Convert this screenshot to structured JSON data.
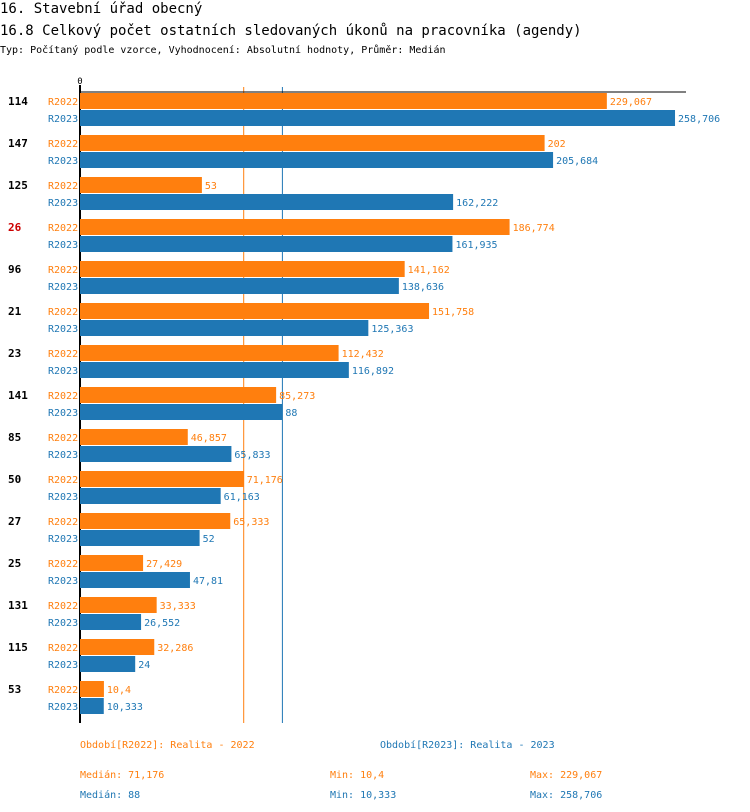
{
  "header": {
    "title": "16. Stavební úřad obecný",
    "subtitle": "16.8 Celkový počet ostatních sledovaných úkonů na pracovníka (agendy)",
    "meta": "Typ: Počítaný podle vzorce, Vyhodnocení: Absolutní hodnoty, Průměr: Medián"
  },
  "colors": {
    "r2022": "#ff7f0e",
    "r2023": "#1f77b4",
    "highlight": "#cc0000"
  },
  "chart_data": {
    "type": "bar",
    "orientation": "horizontal",
    "x_tick_label": "0",
    "xlim": [
      0,
      260
    ],
    "categories": [
      "114",
      "147",
      "125",
      "26",
      "96",
      "21",
      "23",
      "141",
      "85",
      "50",
      "27",
      "25",
      "131",
      "115",
      "53"
    ],
    "highlighted_category": "26",
    "series": [
      {
        "name": "R2022",
        "values": [
          229.067,
          202,
          53,
          186.774,
          141.162,
          151.758,
          112.432,
          85.273,
          46.857,
          71.176,
          65.333,
          27.429,
          33.333,
          32.286,
          10.4
        ],
        "labels": [
          "229,067",
          "202",
          "53",
          "186,774",
          "141,162",
          "151,758",
          "112,432",
          "85,273",
          "46,857",
          "71,176",
          "65,333",
          "27,429",
          "33,333",
          "32,286",
          "10,4"
        ]
      },
      {
        "name": "R2023",
        "values": [
          258.706,
          205.684,
          162.222,
          161.935,
          138.636,
          125.363,
          116.892,
          88,
          65.833,
          61.163,
          52,
          47.81,
          26.552,
          24,
          10.333
        ],
        "labels": [
          "258,706",
          "205,684",
          "162,222",
          "161,935",
          "138,636",
          "125,363",
          "116,892",
          "88",
          "65,833",
          "61,163",
          "52",
          "47,81",
          "26,552",
          "24",
          "10,333"
        ]
      }
    ],
    "median_lines": [
      {
        "series": "R2022",
        "value": 71.176
      },
      {
        "series": "R2023",
        "value": 88
      }
    ]
  },
  "footer": {
    "legend_2022": "Období[R2022]: Realita - 2022",
    "legend_2023": "Období[R2023]: Realita - 2023",
    "stats_2022": {
      "median": "Medián: 71,176",
      "min": "Min: 10,4",
      "max": "Max: 229,067"
    },
    "stats_2023": {
      "median": "Medián: 88",
      "min": "Min: 10,333",
      "max": "Max: 258,706"
    }
  }
}
